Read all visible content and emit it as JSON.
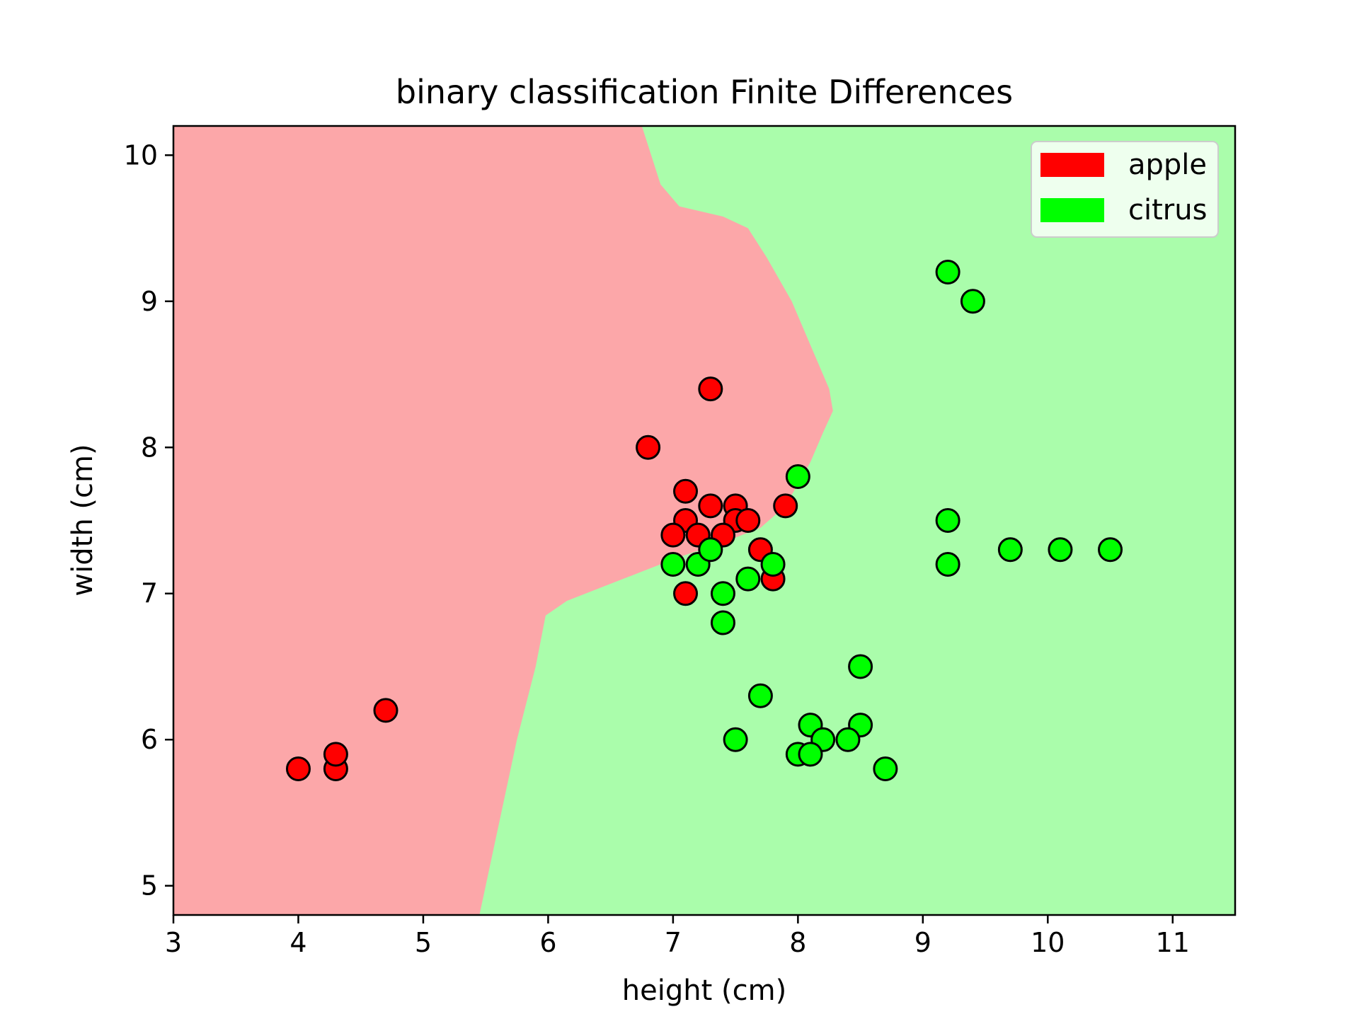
{
  "chart_data": {
    "type": "scatter",
    "title": "binary classification Finite Differences",
    "xlabel": "height (cm)",
    "ylabel": "width (cm)",
    "xlim": [
      3,
      11.5
    ],
    "ylim": [
      4.8,
      10.2
    ],
    "xticks": [
      3,
      4,
      5,
      6,
      7,
      8,
      9,
      10,
      11
    ],
    "yticks": [
      5,
      6,
      7,
      8,
      9,
      10
    ],
    "grid": false,
    "legend_position": "top-right",
    "regions": {
      "apple_color": "#fca7a9",
      "citrus_color": "#aafdab",
      "decision_boundary": [
        [
          6.75,
          10.2
        ],
        [
          6.9,
          9.8
        ],
        [
          7.05,
          9.65
        ],
        [
          7.4,
          9.58
        ],
        [
          7.6,
          9.5
        ],
        [
          7.75,
          9.3
        ],
        [
          7.95,
          9.0
        ],
        [
          8.1,
          8.7
        ],
        [
          8.25,
          8.4
        ],
        [
          8.28,
          8.25
        ],
        [
          8.2,
          8.1
        ],
        [
          8.1,
          7.9
        ],
        [
          7.9,
          7.6
        ],
        [
          7.7,
          7.45
        ],
        [
          7.4,
          7.35
        ],
        [
          7.05,
          7.25
        ],
        [
          6.75,
          7.15
        ],
        [
          6.45,
          7.05
        ],
        [
          6.15,
          6.95
        ],
        [
          5.98,
          6.85
        ],
        [
          5.9,
          6.5
        ],
        [
          5.75,
          6.0
        ],
        [
          5.65,
          5.6
        ],
        [
          5.55,
          5.2
        ],
        [
          5.45,
          4.8
        ]
      ]
    },
    "series": [
      {
        "name": "apple",
        "color": "#ff0000",
        "points": [
          [
            4.0,
            5.8
          ],
          [
            4.3,
            5.8
          ],
          [
            4.3,
            5.9
          ],
          [
            4.7,
            6.2
          ],
          [
            6.8,
            8.0
          ],
          [
            7.3,
            8.4
          ],
          [
            7.1,
            7.7
          ],
          [
            7.3,
            7.6
          ],
          [
            7.5,
            7.6
          ],
          [
            7.1,
            7.5
          ],
          [
            7.5,
            7.5
          ],
          [
            7.6,
            7.5
          ],
          [
            7.0,
            7.4
          ],
          [
            7.2,
            7.4
          ],
          [
            7.4,
            7.4
          ],
          [
            7.7,
            7.3
          ],
          [
            7.9,
            7.6
          ],
          [
            7.8,
            7.1
          ],
          [
            7.1,
            7.0
          ]
        ]
      },
      {
        "name": "citrus",
        "color": "#00ff00",
        "points": [
          [
            9.2,
            9.2
          ],
          [
            9.4,
            9.0
          ],
          [
            8.0,
            7.8
          ],
          [
            9.2,
            7.5
          ],
          [
            9.2,
            7.2
          ],
          [
            9.7,
            7.3
          ],
          [
            10.1,
            7.3
          ],
          [
            10.5,
            7.3
          ],
          [
            7.0,
            7.2
          ],
          [
            7.2,
            7.2
          ],
          [
            7.3,
            7.3
          ],
          [
            7.8,
            7.2
          ],
          [
            7.6,
            7.1
          ],
          [
            7.4,
            7.0
          ],
          [
            7.4,
            6.8
          ],
          [
            8.5,
            6.5
          ],
          [
            7.7,
            6.3
          ],
          [
            8.1,
            6.1
          ],
          [
            8.5,
            6.1
          ],
          [
            7.5,
            6.0
          ],
          [
            8.2,
            6.0
          ],
          [
            8.4,
            6.0
          ],
          [
            8.0,
            5.9
          ],
          [
            8.1,
            5.9
          ],
          [
            8.7,
            5.8
          ]
        ]
      }
    ]
  }
}
